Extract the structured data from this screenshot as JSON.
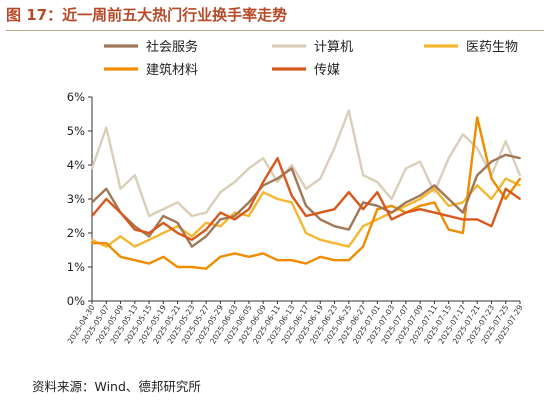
{
  "header": {
    "title": "图 17：近一周前五大热门行业换手率走势"
  },
  "footer": {
    "source": "资料来源：Wind、德邦研究所"
  },
  "chart_data": {
    "type": "line",
    "title": "图 17：近一周前五大热门行业换手率走势",
    "xlabel": "",
    "ylabel": "",
    "ylim": [
      0,
      6
    ],
    "yticks": [
      "0%",
      "1%",
      "2%",
      "3%",
      "4%",
      "5%",
      "6%"
    ],
    "grid": false,
    "legend_position": "top",
    "x": [
      "2025-04-30",
      "2025-05-07",
      "2025-05-09",
      "2025-05-13",
      "2025-05-15",
      "2025-05-19",
      "2025-05-21",
      "2025-05-23",
      "2025-05-27",
      "2025-05-29",
      "2025-06-03",
      "2025-06-05",
      "2025-06-09",
      "2025-06-11",
      "2025-06-13",
      "2025-06-17",
      "2025-06-19",
      "2025-06-23",
      "2025-06-25",
      "2025-06-27",
      "2025-07-01",
      "2025-07-03",
      "2025-07-07",
      "2025-07-09",
      "2025-07-11",
      "2025-07-15",
      "2025-07-17",
      "2025-07-21",
      "2025-07-23",
      "2025-07-25",
      "2025-07-29"
    ],
    "series": [
      {
        "name": "社会服务",
        "color": "#a07858",
        "values": [
          2.9,
          3.3,
          2.6,
          2.2,
          1.9,
          2.5,
          2.3,
          1.6,
          1.9,
          2.4,
          2.5,
          2.9,
          3.4,
          3.6,
          3.9,
          2.8,
          2.4,
          2.2,
          2.1,
          2.9,
          2.8,
          2.6,
          2.9,
          3.1,
          3.4,
          3.0,
          2.6,
          3.7,
          4.1,
          4.3,
          4.2
        ]
      },
      {
        "name": "计算机",
        "color": "#d9cfb8",
        "values": [
          3.9,
          5.1,
          3.3,
          3.7,
          2.5,
          2.7,
          2.9,
          2.5,
          2.6,
          3.2,
          3.5,
          3.9,
          4.2,
          3.5,
          4.0,
          3.3,
          3.6,
          4.5,
          5.6,
          3.7,
          3.5,
          3.0,
          3.9,
          4.1,
          3.2,
          4.2,
          4.9,
          4.5,
          3.7,
          4.7,
          3.7
        ]
      },
      {
        "name": "医药生物",
        "color": "#f5b731",
        "values": [
          1.8,
          1.6,
          1.9,
          1.6,
          1.8,
          2.0,
          2.2,
          1.9,
          2.3,
          2.2,
          2.6,
          2.5,
          3.2,
          3.0,
          2.9,
          2.0,
          1.8,
          1.7,
          1.6,
          2.2,
          2.4,
          2.6,
          2.8,
          3.0,
          3.3,
          2.8,
          2.9,
          3.4,
          3.0,
          3.6,
          3.4
        ]
      },
      {
        "name": "建筑材料",
        "color": "#f08c00",
        "values": [
          1.7,
          1.7,
          1.3,
          1.2,
          1.1,
          1.3,
          1.0,
          1.0,
          0.95,
          1.3,
          1.4,
          1.3,
          1.4,
          1.2,
          1.2,
          1.1,
          1.3,
          1.2,
          1.2,
          1.6,
          2.7,
          2.8,
          2.6,
          2.8,
          2.9,
          2.1,
          2.0,
          5.4,
          3.6,
          3.0,
          3.6
        ]
      },
      {
        "name": "传媒",
        "color": "#d9581c",
        "values": [
          2.5,
          3.0,
          2.6,
          2.1,
          2.0,
          2.3,
          2.0,
          1.8,
          2.1,
          2.6,
          2.4,
          2.7,
          3.5,
          4.2,
          3.1,
          2.5,
          2.6,
          2.7,
          3.2,
          2.7,
          3.2,
          2.4,
          2.6,
          2.7,
          2.6,
          2.5,
          2.4,
          2.4,
          2.2,
          3.3,
          3.0
        ]
      }
    ]
  }
}
